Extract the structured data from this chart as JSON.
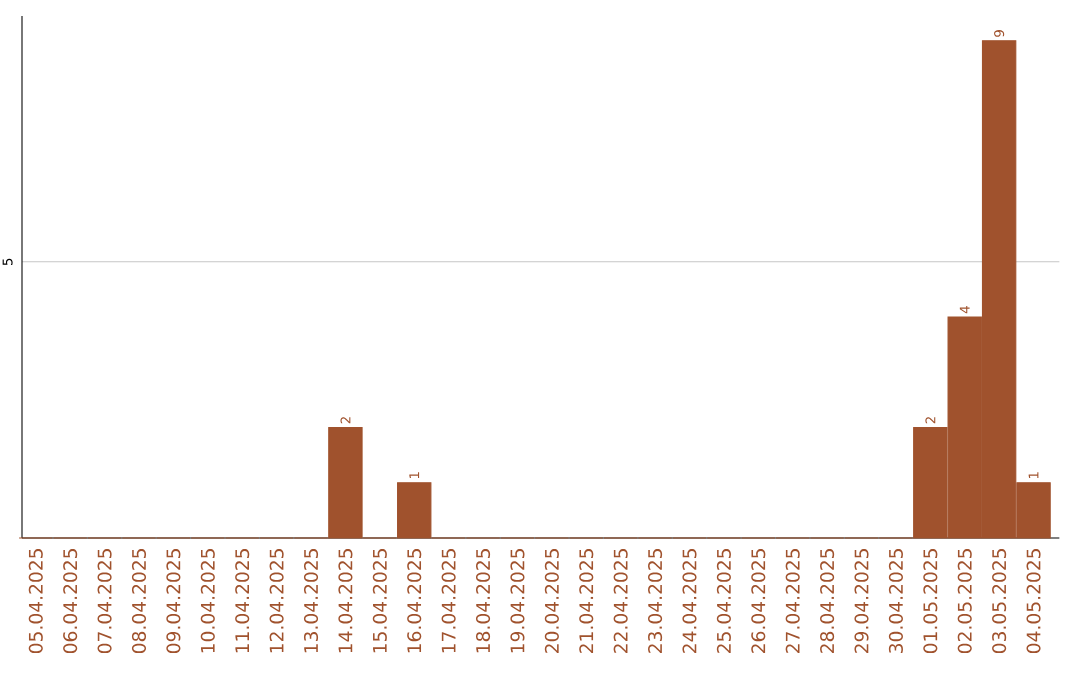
{
  "chart_data": {
    "type": "bar",
    "categories": [
      "05.04.2025",
      "06.04.2025",
      "07.04.2025",
      "08.04.2025",
      "09.04.2025",
      "10.04.2025",
      "11.04.2025",
      "12.04.2025",
      "13.04.2025",
      "14.04.2025",
      "15.04.2025",
      "16.04.2025",
      "17.04.2025",
      "18.04.2025",
      "19.04.2025",
      "20.04.2025",
      "21.04.2025",
      "22.04.2025",
      "23.04.2025",
      "24.04.2025",
      "25.04.2025",
      "26.04.2025",
      "27.04.2025",
      "28.04.2025",
      "29.04.2025",
      "30.04.2025",
      "01.05.2025",
      "02.05.2025",
      "03.05.2025",
      "04.05.2025"
    ],
    "values": [
      0,
      0,
      0,
      0,
      0,
      0,
      0,
      0,
      0,
      2,
      0,
      1,
      0,
      0,
      0,
      0,
      0,
      0,
      0,
      0,
      0,
      0,
      0,
      0,
      0,
      0,
      2,
      4,
      9,
      1
    ],
    "value_labels": [
      null,
      null,
      null,
      null,
      null,
      null,
      null,
      null,
      null,
      "2",
      null,
      "1",
      null,
      null,
      null,
      null,
      null,
      null,
      null,
      null,
      null,
      null,
      null,
      null,
      null,
      null,
      "2",
      "4",
      "9",
      "1"
    ],
    "color": "#a0522d",
    "ylim": [
      0,
      9.45
    ],
    "yticks": [
      {
        "value": 5,
        "label": "5"
      }
    ],
    "grid": "y"
  }
}
